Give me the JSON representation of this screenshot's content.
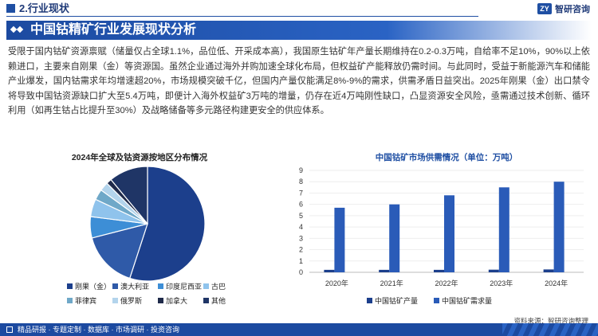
{
  "header": {
    "section_title": "2.行业现状",
    "brand_name": "智研咨询",
    "brand_logo": "ZY"
  },
  "title_bar": {
    "title": "中国钴精矿行业发展现状分析"
  },
  "body_text": "受限于国内钴矿资源禀赋（储量仅占全球1.1%，品位低、开采成本高），我国原生钴矿年产量长期维持在0.2-0.3万吨，自给率不足10%，90%以上依赖进口，主要来自刚果（金）等资源国。虽然企业通过海外并购加速全球化布局，但权益矿产能释放仍需时间。与此同时，受益于新能源汽车和储能产业爆发，国内钴需求年均增速超20%，市场规模突破千亿，但国内产量仅能满足8%-9%的需求，供需矛盾日益突出。2025年刚果（金）出口禁令将导致中国钴资源缺口扩大至5.4万吨，即便计入海外权益矿3万吨的增量，仍存在近4万吨刚性缺口，凸显资源安全风险，亟需通过技术创新、循环利用（如再生钴占比提升至30%）及战略储备等多元路径构建更安全的供应体系。",
  "chart_data": [
    {
      "type": "pie",
      "title": "2024年全球及钴资源按地区分布情况",
      "slices": [
        {
          "name": "刚果（金）",
          "value": 55,
          "color": "#1c3f8c"
        },
        {
          "name": "澳大利亚",
          "value": 16,
          "color": "#2f5aa8"
        },
        {
          "name": "印度尼西亚",
          "value": 6,
          "color": "#3d8ed6"
        },
        {
          "name": "古巴",
          "value": 5,
          "color": "#8fc3ec"
        },
        {
          "name": "菲律宾",
          "value": 3,
          "color": "#6fa8c8"
        },
        {
          "name": "俄罗斯",
          "value": 2.5,
          "color": "#b3d4ec"
        },
        {
          "name": "加拿大",
          "value": 1.5,
          "color": "#1f2a4a"
        },
        {
          "name": "其他",
          "value": 11,
          "color": "#1f3566"
        }
      ],
      "legend_position": "bottom"
    },
    {
      "type": "bar",
      "title": "中国钴矿市场供需情况（单位：万吨）",
      "categories": [
        "2020年",
        "2021年",
        "2022年",
        "2023年",
        "2024年"
      ],
      "series": [
        {
          "name": "中国钴矿产量",
          "values": [
            0.22,
            0.22,
            0.22,
            0.23,
            0.25
          ],
          "color": "#1c3f8c"
        },
        {
          "name": "中国钴矿需求量",
          "values": [
            5.7,
            6.0,
            6.8,
            7.5,
            8.0
          ],
          "color": "#2a5bb8"
        }
      ],
      "ylim": [
        0,
        9
      ],
      "yticks": [
        0,
        1,
        2,
        3,
        4,
        5,
        6,
        7,
        8,
        9
      ],
      "legend_position": "bottom"
    }
  ],
  "source": "资料来源：智研咨询整理",
  "footer": {
    "text": "精品研报 · 专题定制 · 数据库 · 市场调研 · 投资咨询"
  }
}
